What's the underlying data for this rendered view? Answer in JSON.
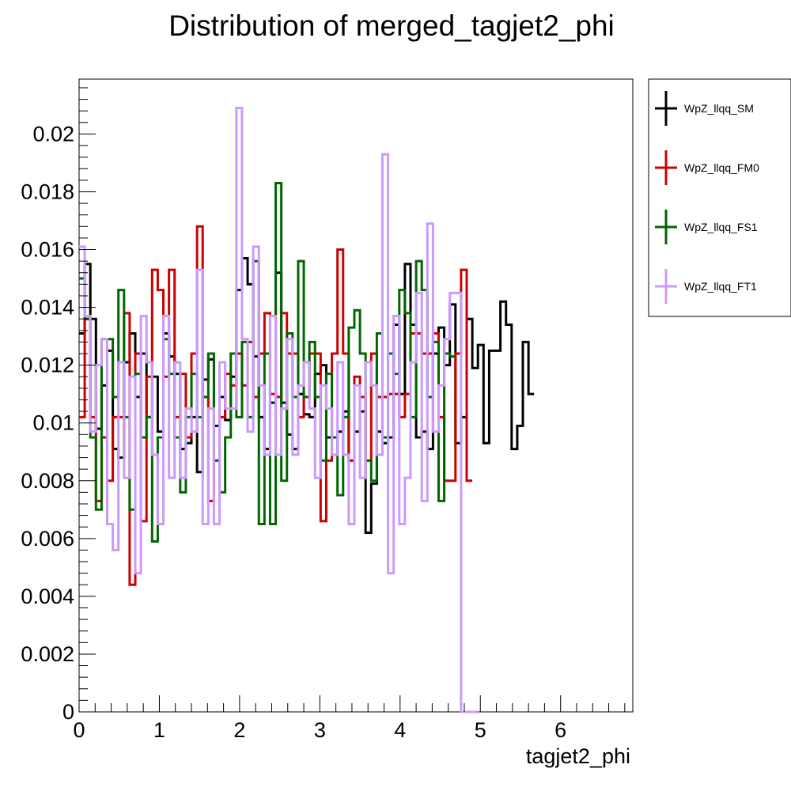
{
  "chart_data": {
    "type": "step-histogram",
    "title": "Distribution of merged_tagjet2_phi",
    "xlabel": "tagjet2_phi",
    "ylabel": "",
    "xlim": [
      0,
      6.9
    ],
    "ylim": [
      0,
      0.0219
    ],
    "bin_width": 0.07,
    "x_ticks": [
      0,
      1,
      2,
      3,
      4,
      5,
      6
    ],
    "x_tick_labels": [
      "0",
      "1",
      "2",
      "3",
      "4",
      "5",
      "6"
    ],
    "y_ticks": [
      0,
      0.002,
      0.004,
      0.006,
      0.008,
      0.01,
      0.012,
      0.014,
      0.016,
      0.018,
      0.02
    ],
    "y_tick_labels": [
      "0",
      "0.002",
      "0.004",
      "0.006",
      "0.008",
      "0.01",
      "0.012",
      "0.014",
      "0.016",
      "0.018",
      "0.02"
    ],
    "legend_position": "outside-right",
    "series": [
      {
        "name": "WpZ_llqq_SM",
        "color": "#000000",
        "values": [
          0.0131,
          0.0155,
          0.0136,
          0.0098,
          0.0113,
          0.0125,
          0.0091,
          0.0088,
          0.0121,
          0.0131,
          0.0109,
          0.0124,
          0.0102,
          0.0116,
          0.0097,
          0.0131,
          0.0123,
          0.0117,
          0.0091,
          0.0093,
          0.0102,
          0.0083,
          0.0115,
          0.0122,
          0.0099,
          0.0109,
          0.0101,
          0.0116,
          0.0146,
          0.0157,
          0.0148,
          0.0123,
          0.0102,
          0.0091,
          0.0107,
          0.0152,
          0.0107,
          0.0096,
          0.0091,
          0.011,
          0.0103,
          0.0102,
          0.0117,
          0.012,
          0.0095,
          0.0095,
          0.0097,
          0.0104,
          0.0087,
          0.0097,
          0.0104,
          0.0062,
          0.0079,
          0.0097,
          0.0093,
          0.0095,
          0.0134,
          0.011,
          0.0155,
          0.0134,
          0.0095,
          0.0097,
          0.0091,
          0.0124,
          0.0133,
          0.012,
          0.0141,
          0.0093,
          0.0102,
          0.0136,
          0.0119,
          0.0127,
          0.0093,
          0.0125,
          0.0125,
          0.0142,
          0.0134,
          0.0091,
          0.0099,
          0.0128,
          0.011
        ]
      },
      {
        "name": "WpZ_llqq_FM0",
        "color": "#cc0000",
        "values": [
          0.0102,
          0.0136,
          0.0102,
          0.0073,
          0.0095,
          0.008,
          0.0102,
          0.0102,
          0.0138,
          0.0044,
          0.0124,
          0.0066,
          0.0116,
          0.0153,
          0.0146,
          0.0116,
          0.0153,
          0.0102,
          0.0117,
          0.0095,
          0.0124,
          0.0168,
          0.0109,
          0.0073,
          0.0087,
          0.0102,
          0.0117,
          0.0113,
          0.0124,
          0.0113,
          0.0128,
          0.0109,
          0.0124,
          0.0138,
          0.011,
          0.0109,
          0.0138,
          0.0124,
          0.0124,
          0.0102,
          0.0109,
          0.0124,
          0.0124,
          0.0066,
          0.0087,
          0.0124,
          0.016,
          0.0124,
          0.0087,
          0.0116,
          0.0109,
          0.0087,
          0.0124,
          0.0109,
          0.0109,
          0.011,
          0.011,
          0.0102,
          0.011,
          0.0131,
          0.0131,
          0.0124,
          0.0124,
          0.0131,
          0.0102,
          0.008,
          0.008,
          0.0124,
          0.0153,
          0.008
        ]
      },
      {
        "name": "WpZ_llqq_FS1",
        "color": "#006600",
        "values": [
          0.015,
          0.0136,
          0.0095,
          0.007,
          0.0129,
          0.0129,
          0.0109,
          0.0146,
          0.0102,
          0.007,
          0.0117,
          0.0095,
          0.0102,
          0.0059,
          0.0095,
          0.0129,
          0.0117,
          0.0095,
          0.0076,
          0.0102,
          0.0117,
          0.0102,
          0.0109,
          0.0124,
          0.0087,
          0.0076,
          0.0095,
          0.0124,
          0.0102,
          0.0128,
          0.0102,
          0.0156,
          0.0065,
          0.0124,
          0.0065,
          0.0183,
          0.008,
          0.0131,
          0.0109,
          0.0156,
          0.0109,
          0.0128,
          0.0109,
          0.0087,
          0.0117,
          0.0095,
          0.0075,
          0.0102,
          0.0133,
          0.0139,
          0.0124,
          0.0087,
          0.008,
          0.0131,
          0.0095,
          0.0124,
          0.0117,
          0.0146,
          0.0138,
          0.0102,
          0.0156,
          0.0146,
          0.0109,
          0.0128,
          0.0073,
          0.0124,
          0.0123
        ]
      },
      {
        "name": "WpZ_llqq_FT1",
        "color": "#cc99ff",
        "values": [
          0.0161,
          0.0137,
          0.0097,
          0.012,
          0.0129,
          0.0065,
          0.0056,
          0.0121,
          0.0081,
          0.0116,
          0.0048,
          0.0137,
          0.0121,
          0.0089,
          0.0065,
          0.0137,
          0.0081,
          0.0121,
          0.0081,
          0.0105,
          0.0097,
          0.0153,
          0.0065,
          0.0105,
          0.0065,
          0.0121,
          0.0105,
          0.0105,
          0.0209,
          0.0129,
          0.0097,
          0.0161,
          0.0113,
          0.0089,
          0.0137,
          0.0089,
          0.0105,
          0.0129,
          0.0089,
          0.0113,
          0.0121,
          0.0105,
          0.0081,
          0.0113,
          0.0105,
          0.0089,
          0.0121,
          0.0089,
          0.0065,
          0.0113,
          0.0081,
          0.0121,
          0.0113,
          0.0089,
          0.0193,
          0.0048,
          0.0137,
          0.0065,
          0.0081,
          0.0121,
          0.0145,
          0.0073,
          0.0169,
          0.0097,
          0.0113,
          0.0129,
          0.0145,
          0.0145,
          0.0,
          0.0,
          0.0
        ]
      }
    ]
  }
}
